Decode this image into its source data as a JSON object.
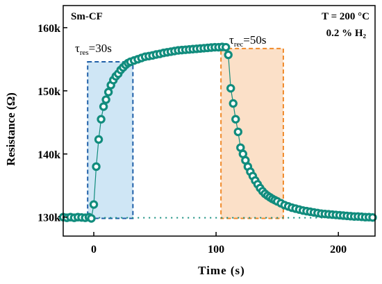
{
  "chart_data": {
    "type": "scatter",
    "xlabel": "Time (s)",
    "ylabel": "Resistance (Ω)",
    "xlim": [
      -25,
      230
    ],
    "ylim": [
      127000,
      163500
    ],
    "xticks": [
      0,
      100,
      200
    ],
    "xtick_labels": [
      "0",
      "100",
      "200"
    ],
    "yticks": [
      130000,
      140000,
      150000,
      160000
    ],
    "ytick_labels": [
      "130k",
      "140k",
      "150k",
      "160k"
    ],
    "sample_label": "Sm-CF",
    "condition_labels": [
      "T = 200 °C",
      "0.2 % H₂"
    ],
    "tau_res": {
      "symbol": "τ",
      "subscript": "res",
      "value": "=30s"
    },
    "tau_rec": {
      "symbol": "τ",
      "subscript": "rec",
      "value": "=50s"
    },
    "response_window": {
      "x": [
        -5,
        32
      ],
      "y": [
        129800,
        154600
      ],
      "color": "#1f5fa8",
      "fill": "#cfe6f5"
    },
    "recovery_window": {
      "x": [
        104,
        155
      ],
      "y": [
        129800,
        156700
      ],
      "color": "#f08a2a",
      "fill": "#fbe0c8"
    },
    "baseline": {
      "y": 129900,
      "x": [
        -5,
        230
      ]
    },
    "series": [
      {
        "marker_color": "#118c7d",
        "x": [
          -25,
          -22,
          -19,
          -16,
          -13,
          -10,
          -7,
          -4,
          -2,
          0,
          2,
          4,
          6,
          8,
          10,
          12,
          14,
          16,
          18,
          20,
          22,
          24,
          26,
          28,
          30,
          33,
          36,
          39,
          42,
          45,
          48,
          51,
          54,
          57,
          60,
          63,
          66,
          69,
          72,
          75,
          78,
          81,
          84,
          87,
          90,
          93,
          96,
          99,
          102,
          105,
          108,
          110,
          112,
          114,
          116,
          118,
          120,
          122,
          124,
          126,
          128,
          130,
          132,
          134,
          136,
          138,
          140,
          142,
          144,
          146,
          148,
          150,
          153,
          156,
          159,
          162,
          165,
          168,
          171,
          174,
          177,
          180,
          183,
          186,
          189,
          192,
          195,
          198,
          201,
          204,
          207,
          210,
          213,
          216,
          219,
          222,
          225,
          228
        ],
        "y": [
          130000,
          129900,
          130000,
          129900,
          130000,
          129950,
          129900,
          130000,
          129800,
          132000,
          138000,
          142300,
          145500,
          147500,
          148600,
          149800,
          150900,
          151700,
          152300,
          152700,
          153300,
          153700,
          154100,
          154400,
          154600,
          154800,
          155000,
          155200,
          155400,
          155500,
          155600,
          155750,
          155850,
          156000,
          156100,
          156200,
          156300,
          156400,
          156450,
          156500,
          156550,
          156600,
          156650,
          156700,
          156750,
          156800,
          156850,
          156900,
          156900,
          156950,
          156900,
          155700,
          150400,
          148000,
          145500,
          143500,
          141000,
          140000,
          139000,
          138000,
          137200,
          136500,
          135800,
          135200,
          134600,
          134100,
          133700,
          133400,
          133150,
          132900,
          132700,
          132500,
          132200,
          131900,
          131700,
          131500,
          131350,
          131200,
          131050,
          130950,
          130850,
          130750,
          130650,
          130550,
          130500,
          130450,
          130400,
          130350,
          130300,
          130250,
          130200,
          130150,
          130100,
          130100,
          130050,
          130000,
          130000,
          129950
        ]
      }
    ]
  }
}
